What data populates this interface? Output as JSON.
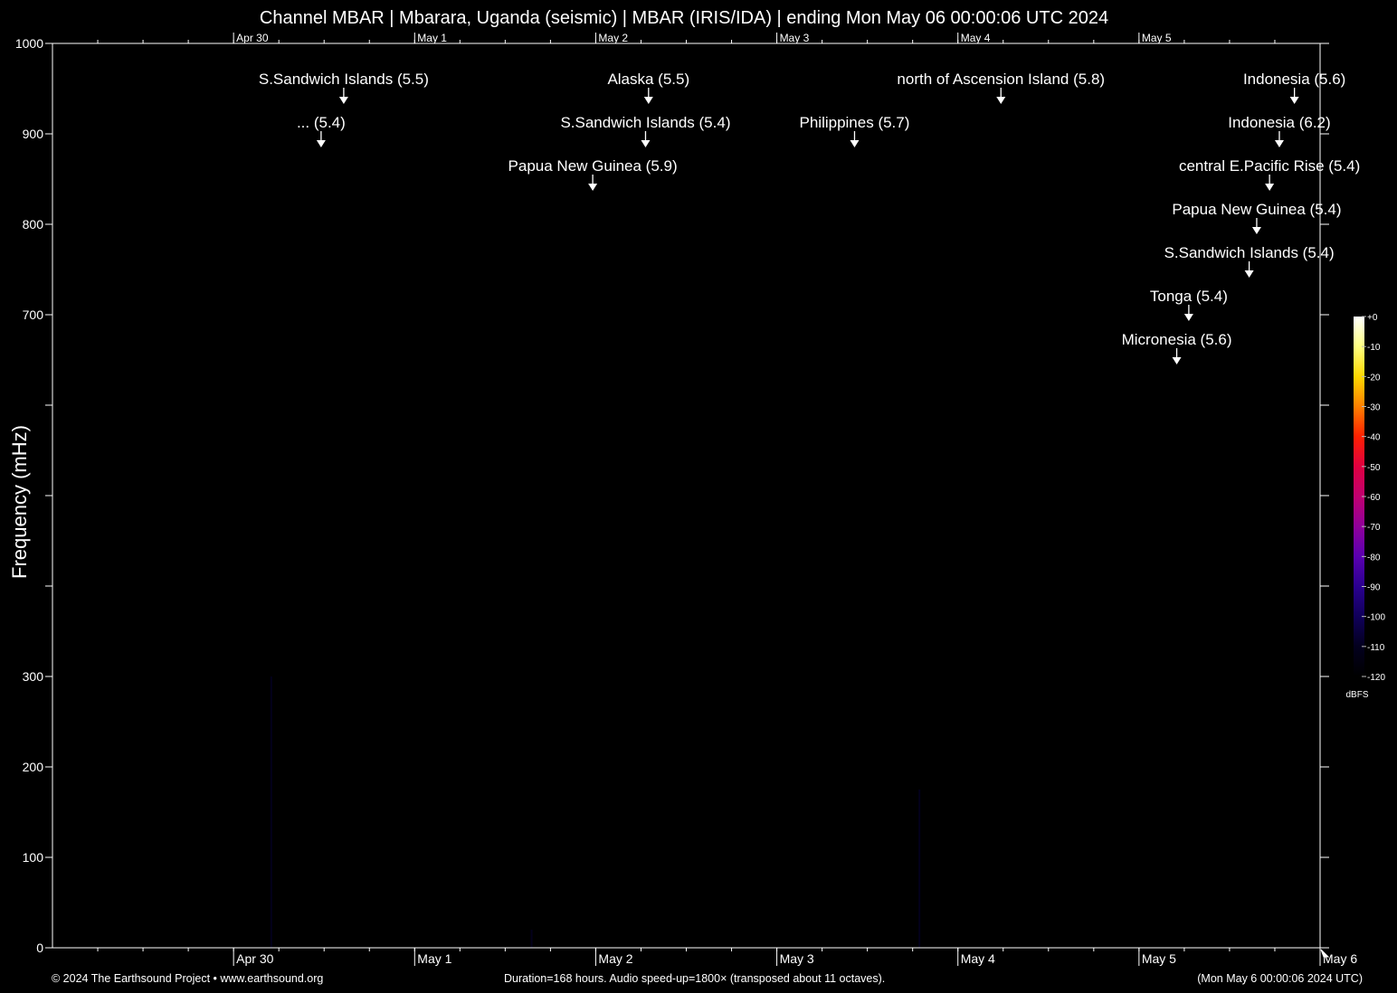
{
  "header": {
    "title": "Channel MBAR | Mbarara, Uganda (seismic) | MBAR (IRIS/IDA) | ending Mon May 06 00:00:06 UTC 2024"
  },
  "footer": {
    "copyright": "© 2024 The Earthsound Project • www.earthsound.org",
    "duration": "Duration=168 hours. Audio speed-up=1800× (transposed about 11 octaves).",
    "end_time": "(Mon May  6 00:00:06 2024 UTC)"
  },
  "colorbar": {
    "unit": "dBFS",
    "labels": [
      "+0",
      "-10",
      "-20",
      "-30",
      "-40",
      "-50",
      "-60",
      "-70",
      "-80",
      "-90",
      "-100",
      "-110",
      "-120"
    ],
    "colors": [
      "#ffffff",
      "#ffff80",
      "#ffd800",
      "#ff8000",
      "#ff2000",
      "#e00040",
      "#c00070",
      "#90009a",
      "#5a00b0",
      "#2a0090",
      "#10005a",
      "#03001e",
      "#000000"
    ]
  },
  "chart_data": {
    "type": "heatmap",
    "title": "Channel MBAR | Mbarara, Uganda (seismic) | MBAR (IRIS/IDA) | ending Mon May 06 00:00:06 UTC 2024",
    "ylabel": "Frequency (mHz)",
    "xlabel": "",
    "x_unit": "hours",
    "xlim": [
      0,
      168
    ],
    "ylim": [
      0,
      1000
    ],
    "y_ticks": [
      {
        "value": 0,
        "label": "0"
      },
      {
        "value": 100,
        "label": "100"
      },
      {
        "value": 200,
        "label": "200"
      },
      {
        "value": 300,
        "label": "300"
      },
      {
        "value": 400,
        "label": ""
      },
      {
        "value": 500,
        "label": ""
      },
      {
        "value": 600,
        "label": ""
      },
      {
        "value": 700,
        "label": "700"
      },
      {
        "value": 800,
        "label": "800"
      },
      {
        "value": 900,
        "label": "900"
      },
      {
        "value": 1000,
        "label": "1000"
      }
    ],
    "x_ticks": [
      {
        "hour": 24,
        "label": "Apr 30"
      },
      {
        "hour": 48,
        "label": "May  1"
      },
      {
        "hour": 72,
        "label": "May  2"
      },
      {
        "hour": 96,
        "label": "May  3"
      },
      {
        "hour": 120,
        "label": "May  4"
      },
      {
        "hour": 144,
        "label": "May  5"
      },
      {
        "hour": 168,
        "label": "May  6"
      }
    ],
    "events": [
      {
        "label": "S.Sandwich Islands (5.5)",
        "hour": 38.6,
        "row": 0
      },
      {
        "label": "Alaska (5.5)",
        "hour": 79.0,
        "row": 0
      },
      {
        "label": "north of Ascension Island (5.8)",
        "hour": 125.7,
        "row": 0
      },
      {
        "label": "Indonesia (5.6)",
        "hour": 164.6,
        "row": 0
      },
      {
        "label": "... (5.4)",
        "hour": 35.6,
        "row": 1
      },
      {
        "label": "S.Sandwich Islands (5.4)",
        "hour": 78.6,
        "row": 1
      },
      {
        "label": "Philippines (5.7)",
        "hour": 106.3,
        "row": 1
      },
      {
        "label": "Indonesia (6.2)",
        "hour": 162.6,
        "row": 1
      },
      {
        "label": "Papua New Guinea (5.9)",
        "hour": 71.6,
        "row": 2
      },
      {
        "label": "central E.Pacific Rise (5.4)",
        "hour": 161.3,
        "row": 2
      },
      {
        "label": "Papua New Guinea (5.4)",
        "hour": 159.6,
        "row": 3
      },
      {
        "label": "S.Sandwich Islands (5.4)",
        "hour": 158.6,
        "row": 4
      },
      {
        "label": "Tonga (5.4)",
        "hour": 150.6,
        "row": 5
      },
      {
        "label": "Micronesia (5.6)",
        "hour": 149.0,
        "row": 6
      }
    ],
    "signal_streaks": [
      {
        "hour": 29.0,
        "top_mHz": 300,
        "level_dBFS": -112
      },
      {
        "hour": 114.9,
        "top_mHz": 175,
        "level_dBFS": -108
      },
      {
        "hour": 63.5,
        "top_mHz": 20,
        "level_dBFS": -110
      }
    ],
    "noise_band": {
      "hour_start": 0,
      "hour_end": 45,
      "top_mHz": 80,
      "level_dBFS": -115
    },
    "legend": "colorbar right"
  }
}
